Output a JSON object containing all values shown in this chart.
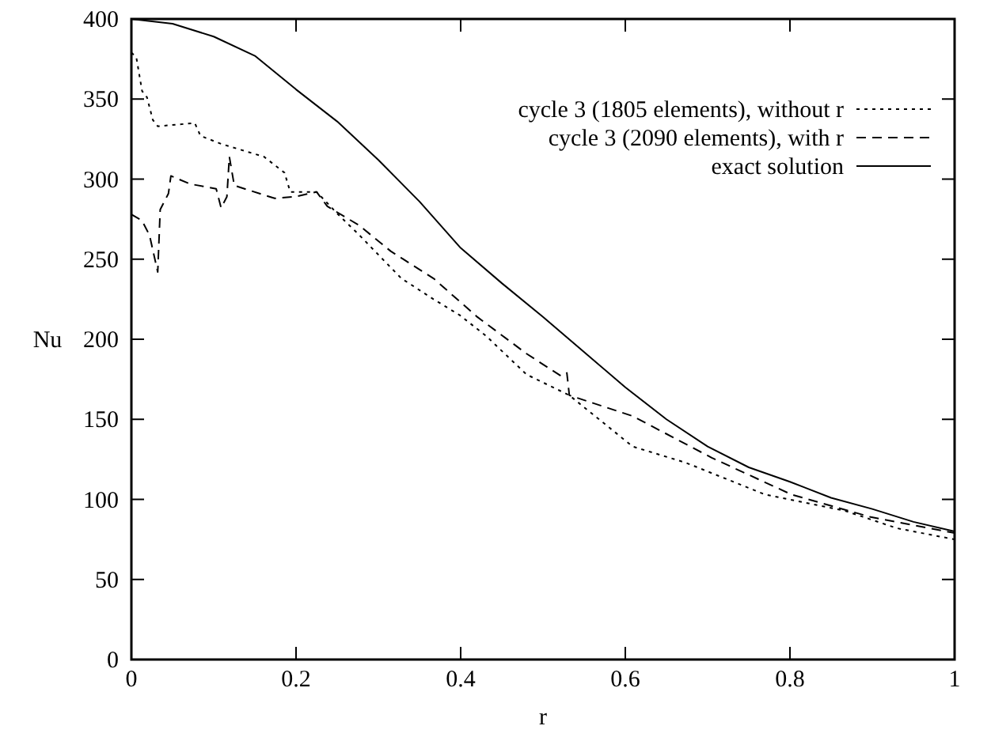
{
  "chart_data": {
    "type": "line",
    "xlabel": "r",
    "ylabel": "Nu",
    "xlim": [
      0,
      1
    ],
    "ylim": [
      0,
      400
    ],
    "xticks": [
      0,
      0.2,
      0.4,
      0.6,
      0.8,
      1
    ],
    "yticks": [
      0,
      50,
      100,
      150,
      200,
      250,
      300,
      350,
      400
    ],
    "grid": false,
    "legend": "top right",
    "marker": "none",
    "series": [
      {
        "name": "cycle 3 (1805 elements), without r",
        "color": "#000000",
        "line_style": "dotted",
        "x": [
          0,
          0.006,
          0.013,
          0.019,
          0.026,
          0.032,
          0.077,
          0.084,
          0.109,
          0.161,
          0.186,
          0.193,
          0.225,
          0.251,
          0.277,
          0.309,
          0.328,
          0.367,
          0.399,
          0.431,
          0.48,
          0.532,
          0.609,
          0.673,
          0.77,
          0.866,
          0.93,
          1
        ],
        "values": [
          379,
          376,
          355,
          351,
          337,
          333,
          335,
          327,
          322,
          314,
          304,
          292,
          292,
          278,
          265,
          248,
          238,
          225,
          215,
          202,
          178,
          165,
          133,
          123,
          103,
          93,
          82,
          75
        ]
      },
      {
        "name": "cycle 3 (2090 elements), with r",
        "color": "#000000",
        "line_style": "dashed",
        "x": [
          0,
          0.013,
          0.022,
          0.032,
          0.035,
          0.045,
          0.048,
          0.071,
          0.103,
          0.109,
          0.116,
          0.119,
          0.125,
          0.174,
          0.199,
          0.225,
          0.238,
          0.277,
          0.315,
          0.367,
          0.42,
          0.48,
          0.522,
          0.529,
          0.532,
          0.609,
          0.705,
          0.802,
          0.898,
          1
        ],
        "values": [
          278,
          274,
          265,
          242,
          281,
          291,
          302,
          297,
          294,
          282,
          289,
          314,
          296,
          288,
          289,
          292,
          283,
          271,
          255,
          238,
          214,
          191,
          177,
          179,
          165,
          152,
          126,
          103,
          89,
          79
        ]
      },
      {
        "name": "exact solution",
        "color": "#000000",
        "line_style": "solid",
        "x": [
          0,
          0.05,
          0.1,
          0.15,
          0.2,
          0.25,
          0.3,
          0.35,
          0.4,
          0.45,
          0.5,
          0.55,
          0.6,
          0.65,
          0.7,
          0.75,
          0.8,
          0.85,
          0.9,
          0.95,
          1
        ],
        "values": [
          400,
          397,
          389,
          377,
          356,
          336,
          312,
          286,
          257,
          235,
          214,
          192,
          170,
          150,
          133,
          120,
          111,
          101,
          94,
          86,
          80
        ]
      }
    ]
  }
}
